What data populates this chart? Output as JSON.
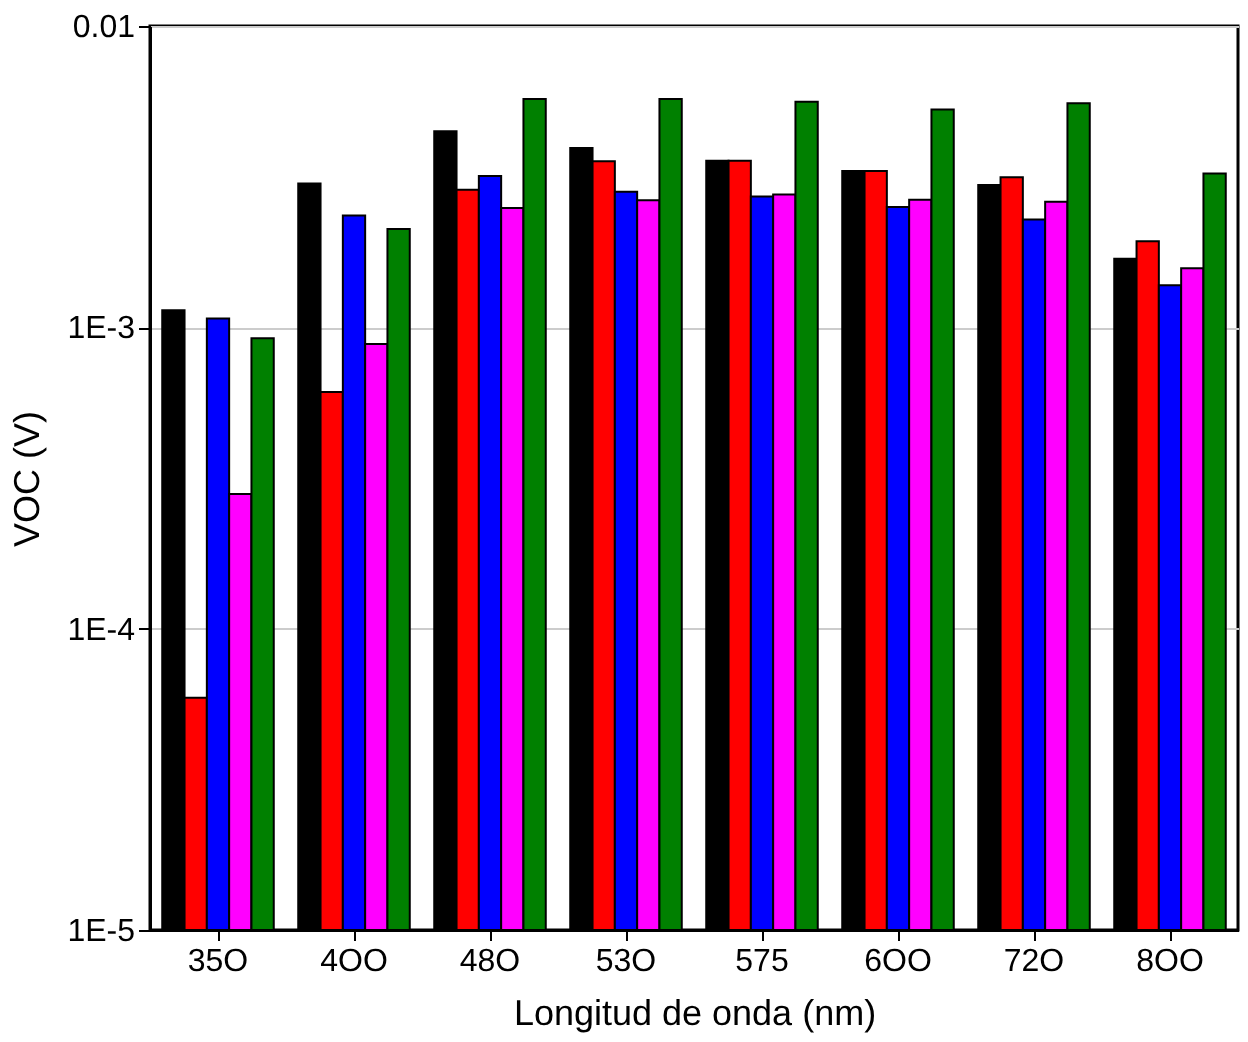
{
  "chart_data": {
    "type": "bar",
    "xlabel": "Longitud de onda (nm)",
    "ylabel": "VOC (V)",
    "categories": [
      "35O",
      "4OO",
      "48O",
      "53O",
      "575",
      "6OO",
      "72O",
      "8OO"
    ],
    "series": [
      {
        "color": "#000000",
        "values": [
          0.00114,
          0.003,
          0.00447,
          0.00394,
          0.00357,
          0.0033,
          0.00297,
          0.00169
        ]
      },
      {
        "color": "#ff0000",
        "values": [
          5.9e-05,
          0.00061,
          0.00286,
          0.00356,
          0.00357,
          0.0033,
          0.00315,
          0.00193
        ]
      },
      {
        "color": "#0000ff",
        "values": [
          0.00107,
          0.00235,
          0.00318,
          0.00282,
          0.00272,
          0.00251,
          0.00228,
          0.00138
        ]
      },
      {
        "color": "#ff00ff",
        "values": [
          0.00028,
          0.00088,
          0.00249,
          0.00264,
          0.00276,
          0.00265,
          0.00261,
          0.00157
        ]
      },
      {
        "color": "#008000",
        "values": [
          0.00092,
          0.00212,
          0.00573,
          0.00573,
          0.00561,
          0.00528,
          0.00554,
          0.00324
        ]
      }
    ],
    "log": true,
    "ylim": [
      1e-05,
      0.01
    ],
    "yticks": [
      {
        "value": 1e-05,
        "label": "1E-5"
      },
      {
        "value": 0.0001,
        "label": "1E-4"
      },
      {
        "value": 0.001,
        "label": "1E-3"
      },
      0.01
    ],
    "grid": "y"
  }
}
